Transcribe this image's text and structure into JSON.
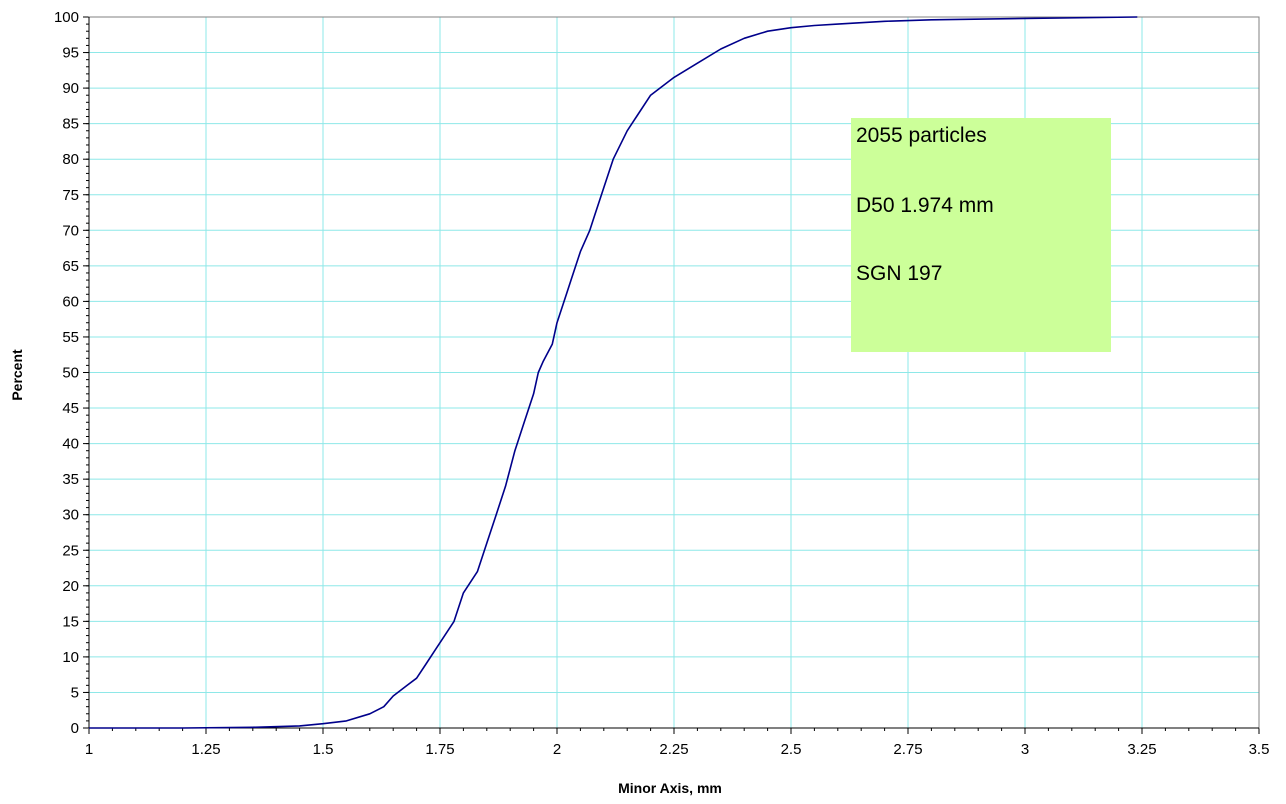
{
  "chart_data": {
    "type": "line",
    "title": "",
    "xlabel": "Minor Axis, mm",
    "ylabel": "Percent",
    "xlim": [
      1,
      3.5
    ],
    "ylim": [
      0,
      100
    ],
    "x_ticks": [
      "1",
      "1.25",
      "1.5",
      "1.75",
      "2",
      "2.25",
      "2.5",
      "2.75",
      "3",
      "3.25",
      "3.5"
    ],
    "y_ticks": [
      "0",
      "5",
      "10",
      "15",
      "20",
      "25",
      "30",
      "35",
      "40",
      "45",
      "50",
      "55",
      "60",
      "65",
      "70",
      "75",
      "80",
      "85",
      "90",
      "95",
      "100"
    ],
    "grid": true,
    "series": [
      {
        "color": "#00008b",
        "x": [
          1.0,
          1.2,
          1.35,
          1.45,
          1.5,
          1.55,
          1.6,
          1.63,
          1.65,
          1.68,
          1.7,
          1.72,
          1.74,
          1.75,
          1.78,
          1.8,
          1.83,
          1.85,
          1.87,
          1.89,
          1.91,
          1.93,
          1.95,
          1.96,
          1.97,
          1.99,
          2.0,
          2.02,
          2.03,
          2.05,
          2.07,
          2.08,
          2.1,
          2.12,
          2.15,
          2.17,
          2.2,
          2.25,
          2.3,
          2.35,
          2.4,
          2.45,
          2.5,
          2.55,
          2.6,
          2.7,
          2.8,
          3.0,
          3.24
        ],
        "y": [
          0,
          0,
          0.1,
          0.3,
          0.6,
          1.0,
          2.0,
          3.0,
          4.5,
          6.0,
          7.0,
          9.0,
          11.0,
          12.0,
          15.0,
          19.0,
          22.0,
          26.0,
          30.0,
          34.0,
          39.0,
          43.0,
          47.0,
          50.0,
          51.5,
          54.0,
          57.0,
          61.0,
          63.0,
          67.0,
          70.0,
          72.0,
          76.0,
          80.0,
          84.0,
          86.0,
          89.0,
          91.5,
          93.5,
          95.5,
          97.0,
          98.0,
          98.5,
          98.8,
          99.0,
          99.4,
          99.6,
          99.8,
          100.0
        ]
      }
    ],
    "annotations": {
      "box_color": "#ccff99",
      "lines": [
        "2055 particles",
        "D50  1.974 mm",
        "SGN  197"
      ]
    }
  }
}
